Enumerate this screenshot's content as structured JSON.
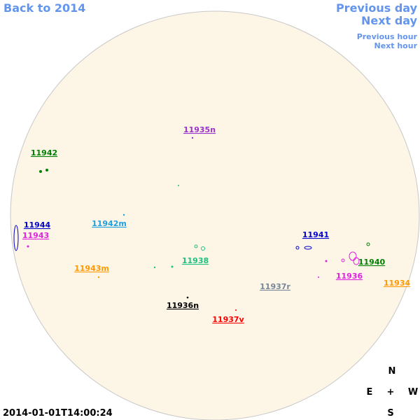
{
  "nav": {
    "back": "Back to 2014",
    "previous_day": "Previous day",
    "next_day": "Next day",
    "previous_hour": "Previous hour",
    "next_hour": "Next hour"
  },
  "regions": [
    {
      "label": "11935n",
      "color": "#9932cc"
    },
    {
      "label": "11942",
      "color": "#008000"
    },
    {
      "label": "11944",
      "color": "#0000cd"
    },
    {
      "label": "11943",
      "color": "#e020e0"
    },
    {
      "label": "11942m",
      "color": "#1ea0e0"
    },
    {
      "label": "11943m",
      "color": "#ff9900"
    },
    {
      "label": "11938",
      "color": "#20c080"
    },
    {
      "label": "11941",
      "color": "#0000cd"
    },
    {
      "label": "11940",
      "color": "#008000"
    },
    {
      "label": "11936",
      "color": "#e020e0"
    },
    {
      "label": "11934",
      "color": "#ff9900"
    },
    {
      "label": "11937r",
      "color": "#778899"
    },
    {
      "label": "11936n",
      "color": "#000000"
    },
    {
      "label": "11937v",
      "color": "#ff0000"
    }
  ],
  "compass": {
    "north": "N",
    "east": "E",
    "center": "+",
    "west": "W",
    "south": "S"
  },
  "timestamp": "2014-01-01T14:00:24"
}
